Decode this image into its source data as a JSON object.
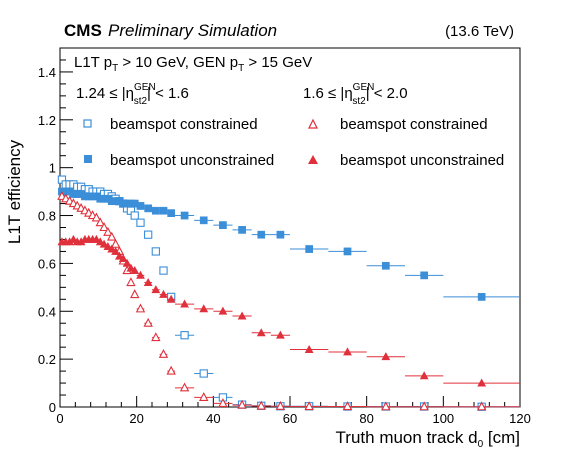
{
  "header": {
    "cms_label": "CMS",
    "status_label": "Preliminary Simulation",
    "energy_label": "(13.6 TeV)"
  },
  "info": {
    "line1": {
      "a": "L1T p",
      "a_sub": "T",
      "b": " > 10 GeV, GEN p",
      "b_sub": "T",
      "c": " > 15 GeV"
    },
    "region1": {
      "pre": "1.24 ≤ |η",
      "sup": "GEN",
      "sub": "st2",
      "post": "| < 1.6"
    },
    "region2": {
      "pre": "1.6 ≤ |η",
      "sup": "GEN",
      "sub": "st2",
      "post": "| < 2.0"
    }
  },
  "legend": [
    {
      "text": "beamspot constrained",
      "marker": "open-square",
      "color": "#3b8ed8"
    },
    {
      "text": "beamspot constrained",
      "marker": "open-triangle",
      "color": "#e0303b"
    },
    {
      "text": "beamspot unconstrained",
      "marker": "filled-square",
      "color": "#3b8ed8"
    },
    {
      "text": "beamspot unconstrained",
      "marker": "filled-triangle",
      "color": "#e0303b"
    }
  ],
  "chart_data": {
    "type": "scatter",
    "xlabel": "Truth muon track d",
    "xlabel_sub": "0",
    "xlabel_unit": " [cm]",
    "ylabel": "L1T efficiency",
    "xlim": [
      0,
      120
    ],
    "ylim": [
      0,
      1.5
    ],
    "x_ticks": [
      0,
      20,
      40,
      60,
      80,
      100,
      120
    ],
    "y_ticks": [
      0,
      0.2,
      0.4,
      0.6,
      0.8,
      1,
      1.2,
      1.4
    ],
    "x_tick_labels": [
      "0",
      "20",
      "40",
      "60",
      "80",
      "100",
      "120"
    ],
    "y_tick_labels": [
      "0",
      "0.2",
      "0.4",
      "0.6",
      "0.8",
      "1",
      "1.2",
      "1.4"
    ],
    "grid": false,
    "series": [
      {
        "name": "beamspot constrained",
        "region": "1.24 ≤ |η| < 1.6",
        "marker": "open-square",
        "color": "#3b8ed8",
        "x": [
          0.5,
          1.5,
          2.5,
          3.5,
          4.5,
          5.5,
          6.5,
          7.5,
          8.5,
          9.5,
          10.5,
          11.5,
          12.5,
          13.5,
          14.5,
          15.5,
          16.5,
          17.5,
          18.5,
          19.5,
          21,
          23,
          25,
          27,
          29,
          32.5,
          37.5,
          42.5,
          47.5,
          52.5,
          57.5,
          65,
          75,
          85,
          95,
          110
        ],
        "y": [
          0.95,
          0.93,
          0.93,
          0.93,
          0.92,
          0.92,
          0.91,
          0.91,
          0.9,
          0.9,
          0.9,
          0.89,
          0.89,
          0.88,
          0.87,
          0.86,
          0.85,
          0.83,
          0.82,
          0.8,
          0.77,
          0.72,
          0.65,
          0.57,
          0.46,
          0.3,
          0.14,
          0.04,
          0.01,
          0.005,
          0.003,
          0.003,
          0.002,
          0.002,
          0.002,
          0.001
        ],
        "xerr": [
          0.5,
          0.5,
          0.5,
          0.5,
          0.5,
          0.5,
          0.5,
          0.5,
          0.5,
          0.5,
          0.5,
          0.5,
          0.5,
          0.5,
          0.5,
          0.5,
          0.5,
          0.5,
          0.5,
          0.5,
          1,
          1,
          1,
          1,
          1,
          2.5,
          2.5,
          2.5,
          2.5,
          2.5,
          2.5,
          5,
          5,
          5,
          5,
          10
        ]
      },
      {
        "name": "beamspot unconstrained",
        "region": "1.24 ≤ |η| < 1.6",
        "marker": "filled-square",
        "color": "#3b8ed8",
        "x": [
          0.5,
          1.5,
          2.5,
          3.5,
          4.5,
          5.5,
          6.5,
          7.5,
          8.5,
          9.5,
          10.5,
          11.5,
          12.5,
          13.5,
          14.5,
          15.5,
          16.5,
          17.5,
          18.5,
          19.5,
          21,
          23,
          25,
          27,
          29,
          32.5,
          37.5,
          42.5,
          47.5,
          52.5,
          57.5,
          65,
          75,
          85,
          95,
          110
        ],
        "y": [
          0.9,
          0.9,
          0.9,
          0.89,
          0.89,
          0.89,
          0.88,
          0.88,
          0.88,
          0.88,
          0.87,
          0.87,
          0.87,
          0.86,
          0.86,
          0.86,
          0.85,
          0.85,
          0.85,
          0.85,
          0.84,
          0.83,
          0.82,
          0.82,
          0.81,
          0.8,
          0.78,
          0.76,
          0.74,
          0.72,
          0.72,
          0.66,
          0.65,
          0.59,
          0.55,
          0.46
        ],
        "xerr": [
          0.5,
          0.5,
          0.5,
          0.5,
          0.5,
          0.5,
          0.5,
          0.5,
          0.5,
          0.5,
          0.5,
          0.5,
          0.5,
          0.5,
          0.5,
          0.5,
          0.5,
          0.5,
          0.5,
          0.5,
          1,
          1,
          1,
          1,
          1,
          2.5,
          2.5,
          2.5,
          2.5,
          2.5,
          2.5,
          5,
          5,
          5,
          5,
          10
        ]
      },
      {
        "name": "beamspot constrained",
        "region": "1.6 ≤ |η| < 2.0",
        "marker": "open-triangle",
        "color": "#e0303b",
        "x": [
          0.5,
          1.5,
          2.5,
          3.5,
          4.5,
          5.5,
          6.5,
          7.5,
          8.5,
          9.5,
          10.5,
          11.5,
          12.5,
          13.5,
          14.5,
          15.5,
          16.5,
          17.5,
          18.5,
          19.5,
          21,
          23,
          25,
          27,
          29,
          32.5,
          37.5,
          42.5,
          47.5,
          52.5,
          57.5,
          65,
          75,
          85,
          95,
          110
        ],
        "y": [
          0.88,
          0.87,
          0.86,
          0.85,
          0.84,
          0.83,
          0.82,
          0.81,
          0.8,
          0.79,
          0.77,
          0.75,
          0.73,
          0.71,
          0.68,
          0.65,
          0.61,
          0.57,
          0.52,
          0.47,
          0.41,
          0.35,
          0.29,
          0.22,
          0.15,
          0.08,
          0.04,
          0.015,
          0.008,
          0.004,
          0.003,
          0.002,
          0.002,
          0.001,
          0.001,
          0.001
        ],
        "xerr": [
          0.5,
          0.5,
          0.5,
          0.5,
          0.5,
          0.5,
          0.5,
          0.5,
          0.5,
          0.5,
          0.5,
          0.5,
          0.5,
          0.5,
          0.5,
          0.5,
          0.5,
          0.5,
          0.5,
          0.5,
          1,
          1,
          1,
          1,
          1,
          2.5,
          2.5,
          2.5,
          2.5,
          2.5,
          2.5,
          5,
          5,
          5,
          5,
          10
        ]
      },
      {
        "name": "beamspot unconstrained",
        "region": "1.6 ≤ |η| < 2.0",
        "marker": "filled-triangle",
        "color": "#e0303b",
        "x": [
          0.5,
          1.5,
          2.5,
          3.5,
          4.5,
          5.5,
          6.5,
          7.5,
          8.5,
          9.5,
          10.5,
          11.5,
          12.5,
          13.5,
          14.5,
          15.5,
          16.5,
          17.5,
          18.5,
          19.5,
          21,
          23,
          25,
          27,
          29,
          32.5,
          37.5,
          42.5,
          47.5,
          52.5,
          57.5,
          65,
          75,
          85,
          95,
          110
        ],
        "y": [
          0.69,
          0.69,
          0.69,
          0.7,
          0.69,
          0.69,
          0.7,
          0.7,
          0.7,
          0.7,
          0.69,
          0.68,
          0.67,
          0.66,
          0.65,
          0.63,
          0.62,
          0.6,
          0.58,
          0.57,
          0.55,
          0.52,
          0.49,
          0.47,
          0.45,
          0.43,
          0.41,
          0.4,
          0.38,
          0.31,
          0.3,
          0.24,
          0.23,
          0.21,
          0.13,
          0.1
        ],
        "xerr": [
          0.5,
          0.5,
          0.5,
          0.5,
          0.5,
          0.5,
          0.5,
          0.5,
          0.5,
          0.5,
          0.5,
          0.5,
          0.5,
          0.5,
          0.5,
          0.5,
          0.5,
          0.5,
          0.5,
          0.5,
          1,
          1,
          1,
          1,
          1,
          2.5,
          2.5,
          2.5,
          2.5,
          2.5,
          2.5,
          5,
          5,
          5,
          5,
          10
        ]
      }
    ]
  }
}
